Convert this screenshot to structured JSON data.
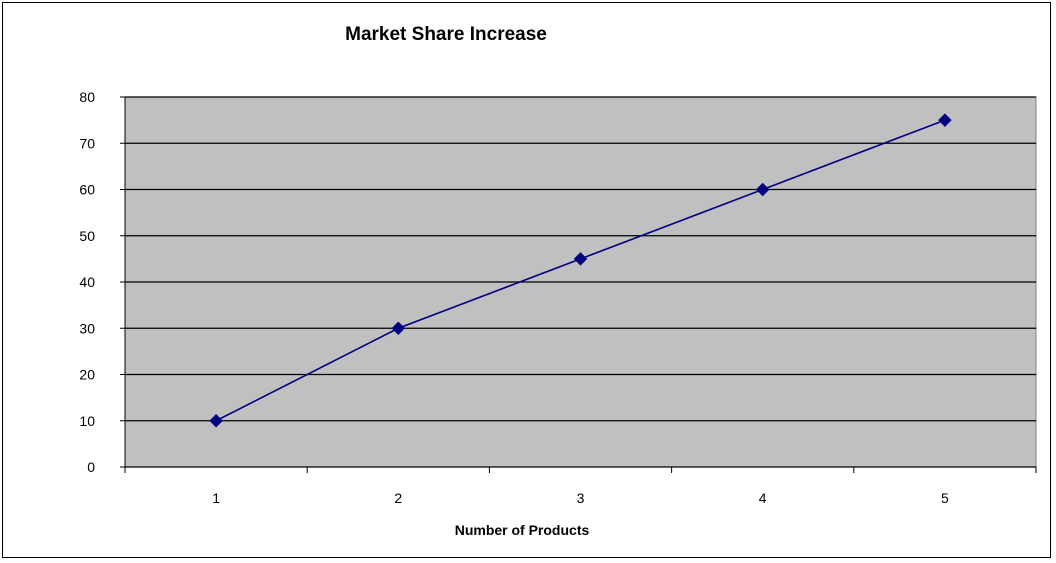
{
  "chart_data": {
    "type": "line",
    "title": "Market Share Increase",
    "xlabel": "Number of Products",
    "ylabel": "",
    "categories": [
      "1",
      "2",
      "3",
      "4",
      "5"
    ],
    "series": [
      {
        "values": [
          10,
          30,
          45,
          60,
          75
        ]
      }
    ],
    "ylim": [
      0,
      80
    ],
    "yticks": [
      "0",
      "10",
      "20",
      "30",
      "40",
      "50",
      "60",
      "70",
      "80"
    ],
    "grid": true,
    "legend": "none",
    "colors": {
      "plot_background": "#c0c0c0",
      "line": "#000080",
      "marker": "#000080",
      "gridline": "#000000"
    }
  }
}
